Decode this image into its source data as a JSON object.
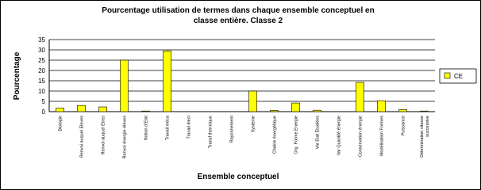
{
  "chart_data": {
    "type": "bar",
    "title": [
      "Pourcentage utilisation de termes dans chaque ensemble conceptuel en",
      "classe entière. Classe 2"
    ],
    "x_label": "Ensemble conceptuel",
    "y_label": "Pourcentage",
    "categories": [
      "Biologie",
      "Renvoi auquel Elèves",
      "Renvoi auquel Etres",
      "Renvoi énergie élèves",
      "Notion d'Etat",
      "Travail méca",
      "Travail élect",
      "Transf thermique",
      "Rayonnement",
      "Système",
      "Chaîne énergétique",
      "Org. Forme Energie",
      "Var Etat Etudiées",
      "Var Quantité énergie",
      "Conservation énergie",
      "Modélisation Formes",
      "Puissance",
      [
        "Détermination vitesse",
        "successive"
      ]
    ],
    "series": [
      {
        "name": "CE",
        "color": "#ffff00",
        "values": [
          1.8,
          3,
          2.3,
          25,
          0.3,
          29.5,
          0,
          0,
          0,
          10,
          0.6,
          4.2,
          0.7,
          0,
          14.2,
          5.3,
          1,
          0.3
        ]
      }
    ],
    "ylim": [
      0,
      35
    ],
    "yticks": [
      0,
      5,
      10,
      15,
      20,
      25,
      30,
      35
    ],
    "grid": true,
    "legend": "right"
  }
}
